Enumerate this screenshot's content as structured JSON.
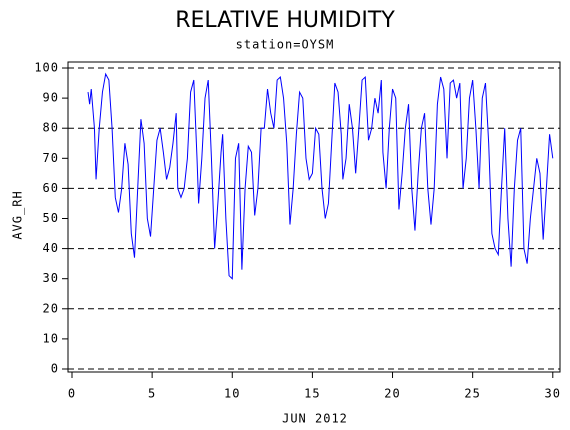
{
  "chart_data": {
    "type": "line",
    "title": "RELATIVE HUMIDITY",
    "subtitle": "station=OYSM",
    "x_label": "JUN 2012",
    "y_label": "AVG_RH",
    "color": "#0000ff",
    "xlim": [
      -0.25,
      30.45
    ],
    "ylim": [
      -1,
      102
    ],
    "xticks": [
      0,
      5,
      10,
      15,
      20,
      25,
      30
    ],
    "yticks": [
      0,
      10,
      20,
      30,
      40,
      50,
      60,
      70,
      80,
      90,
      100
    ],
    "ygrid": [
      0,
      20,
      40,
      60,
      80,
      100
    ],
    "x": [
      1.0,
      1.1,
      1.2,
      1.4,
      1.5,
      1.7,
      1.9,
      2.1,
      2.3,
      2.5,
      2.7,
      2.9,
      3.1,
      3.3,
      3.5,
      3.7,
      3.9,
      4.1,
      4.3,
      4.5,
      4.7,
      4.9,
      5.1,
      5.3,
      5.5,
      5.7,
      5.9,
      6.1,
      6.3,
      6.5,
      6.6,
      6.8,
      7.0,
      7.2,
      7.4,
      7.6,
      7.8,
      7.9,
      8.1,
      8.3,
      8.5,
      8.7,
      8.9,
      9.1,
      9.3,
      9.4,
      9.6,
      9.8,
      10.0,
      10.2,
      10.4,
      10.6,
      10.8,
      11.0,
      11.2,
      11.4,
      11.6,
      11.8,
      12.0,
      12.2,
      12.4,
      12.6,
      12.8,
      13.0,
      13.2,
      13.4,
      13.6,
      13.8,
      14.0,
      14.2,
      14.4,
      14.6,
      14.8,
      15.0,
      15.2,
      15.4,
      15.6,
      15.8,
      16.0,
      16.2,
      16.4,
      16.6,
      16.8,
      16.9,
      17.1,
      17.3,
      17.5,
      17.7,
      17.9,
      18.1,
      18.3,
      18.5,
      18.7,
      18.9,
      19.1,
      19.3,
      19.4,
      19.6,
      19.8,
      20.0,
      20.2,
      20.4,
      20.6,
      20.8,
      21.0,
      21.2,
      21.4,
      21.6,
      21.8,
      22.0,
      22.2,
      22.4,
      22.6,
      22.8,
      23.0,
      23.2,
      23.4,
      23.6,
      23.8,
      24.0,
      24.2,
      24.4,
      24.6,
      24.8,
      25.0,
      25.2,
      25.4,
      25.6,
      25.8,
      26.0,
      26.2,
      26.4,
      26.6,
      26.8,
      27.0,
      27.2,
      27.4,
      27.6,
      27.8,
      28.0,
      28.2,
      28.4,
      28.6,
      28.8,
      29.0,
      29.2,
      29.4,
      29.6,
      29.8,
      30.0
    ],
    "values": [
      92,
      88,
      93,
      80,
      63,
      80,
      92,
      98,
      96,
      80,
      57,
      52,
      60,
      75,
      68,
      45,
      37,
      60,
      83,
      75,
      50,
      44,
      60,
      76,
      80,
      72,
      63,
      67,
      75,
      85,
      60,
      57,
      60,
      70,
      92,
      96,
      70,
      55,
      70,
      90,
      96,
      70,
      40,
      55,
      72,
      78,
      50,
      31,
      30,
      70,
      75,
      33,
      60,
      74,
      72,
      51,
      60,
      80,
      80,
      93,
      85,
      80,
      96,
      97,
      90,
      75,
      48,
      60,
      78,
      92,
      90,
      70,
      63,
      65,
      80,
      78,
      60,
      50,
      55,
      75,
      95,
      92,
      78,
      63,
      70,
      88,
      80,
      65,
      80,
      96,
      97,
      76,
      80,
      90,
      85,
      96,
      72,
      60,
      80,
      93,
      90,
      53,
      65,
      80,
      88,
      60,
      46,
      65,
      80,
      85,
      60,
      48,
      60,
      88,
      97,
      93,
      70,
      95,
      96,
      90,
      95,
      60,
      70,
      90,
      96,
      80,
      60,
      90,
      95,
      75,
      45,
      40,
      38,
      60,
      80,
      50,
      34,
      60,
      76,
      80,
      40,
      35,
      50,
      60,
      70,
      65,
      43,
      60,
      78,
      70
    ]
  }
}
